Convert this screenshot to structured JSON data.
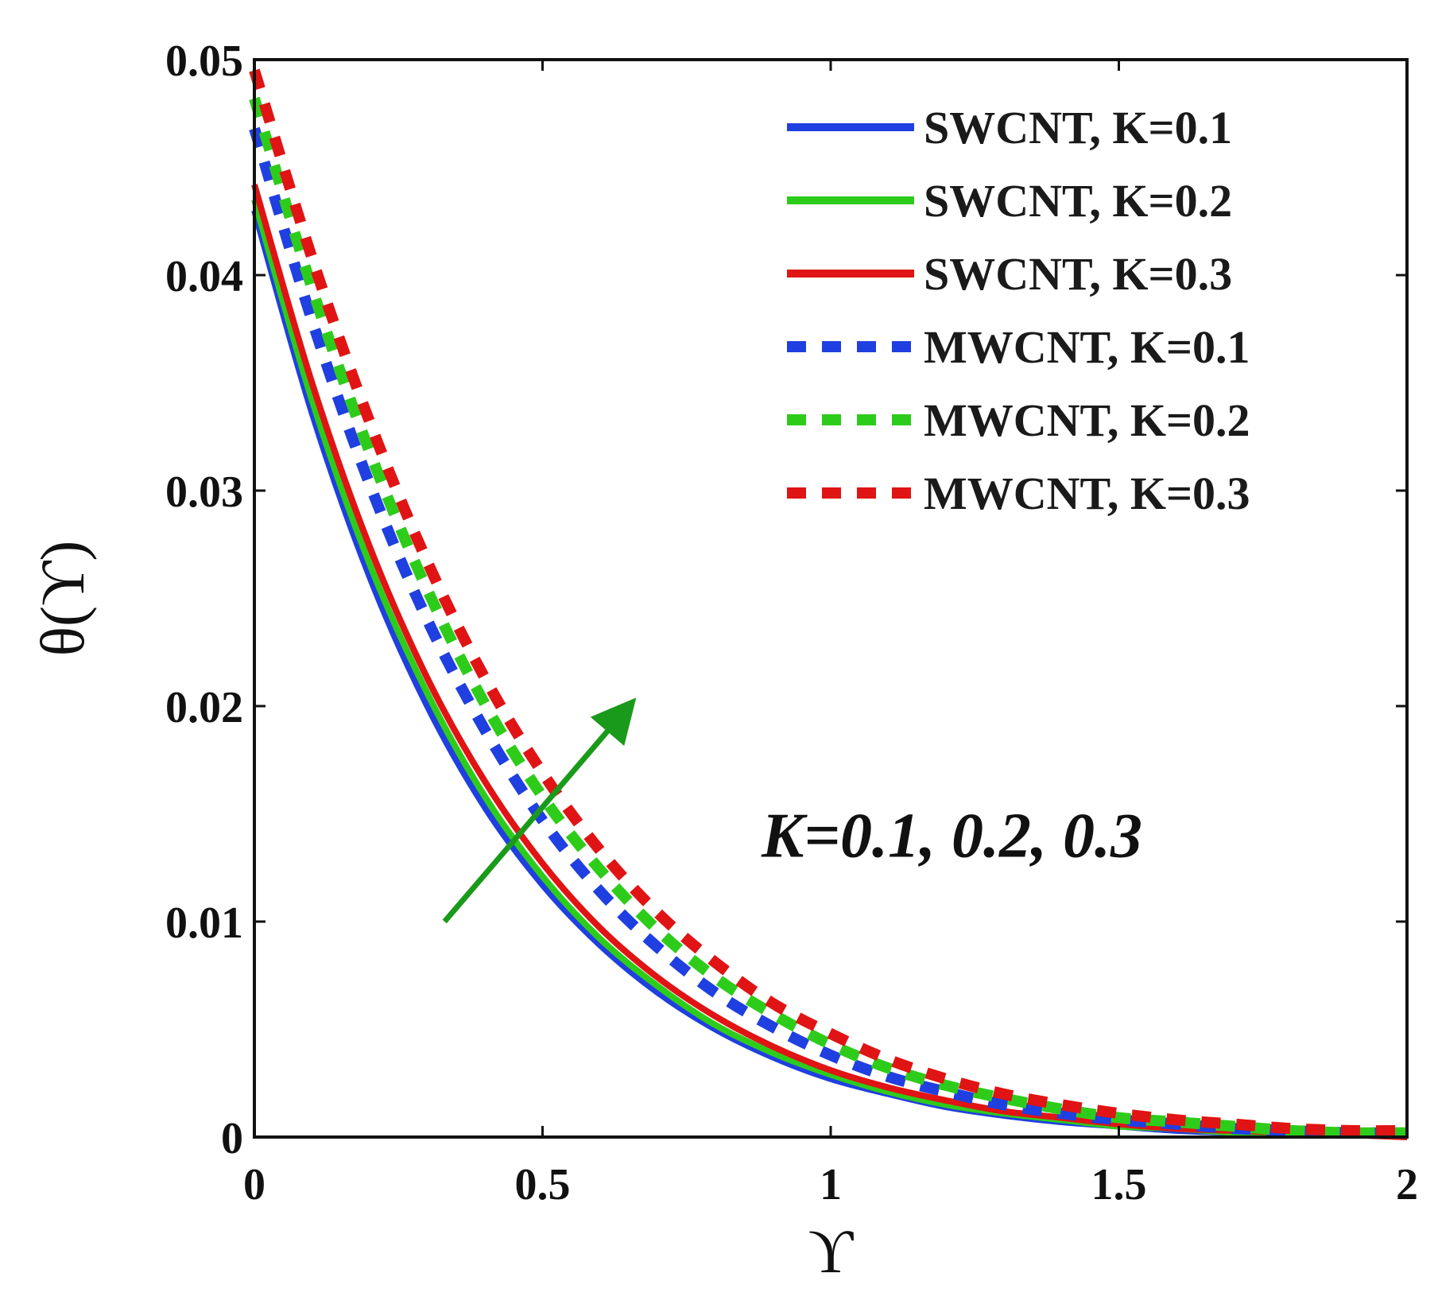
{
  "chart_data": {
    "type": "line",
    "title": "",
    "xlabel": "ϒ",
    "ylabel": "θ(ϒ)",
    "xlim": [
      0,
      2
    ],
    "ylim": [
      0,
      0.05
    ],
    "xticks": [
      "0",
      "0.5",
      "1",
      "1.5",
      "2"
    ],
    "yticks": [
      "0",
      "0.01",
      "0.02",
      "0.03",
      "0.04",
      "0.05"
    ],
    "grid": false,
    "legend_position": "top-right",
    "x": [
      0,
      0.1,
      0.2,
      0.3,
      0.4,
      0.5,
      0.6,
      0.7,
      0.8,
      0.9,
      1.0,
      1.1,
      1.2,
      1.3,
      1.4,
      1.5,
      1.6,
      1.7,
      1.8,
      1.9,
      2.0
    ],
    "series": [
      {
        "name": "SWCNT, K=0.1",
        "color": "#1f3fe0",
        "style": "solid",
        "values": [
          0.043,
          0.0336,
          0.026,
          0.02,
          0.0153,
          0.0117,
          0.0089,
          0.0067,
          0.005,
          0.0037,
          0.0027,
          0.002,
          0.0014,
          0.001,
          0.0007,
          0.0005,
          0.0003,
          0.0002,
          0.0001,
          0.0001,
          0.0
        ]
      },
      {
        "name": "SWCNT, K=0.2",
        "color": "#2ecc1a",
        "style": "solid",
        "values": [
          0.0435,
          0.0342,
          0.0266,
          0.0206,
          0.0158,
          0.0121,
          0.0092,
          0.007,
          0.0052,
          0.0039,
          0.0029,
          0.0021,
          0.0015,
          0.0011,
          0.0008,
          0.0005,
          0.0004,
          0.0002,
          0.0001,
          0.0001,
          0.0
        ]
      },
      {
        "name": "SWCNT, K=0.3",
        "color": "#e01414",
        "style": "solid",
        "values": [
          0.0442,
          0.035,
          0.0274,
          0.0213,
          0.0165,
          0.0127,
          0.0097,
          0.0074,
          0.0056,
          0.0042,
          0.0031,
          0.0023,
          0.0017,
          0.0012,
          0.0009,
          0.0006,
          0.0004,
          0.0003,
          0.0002,
          0.0001,
          0.0
        ]
      },
      {
        "name": "MWCNT, K=0.1",
        "color": "#1f3fe0",
        "style": "dashed",
        "values": [
          0.0468,
          0.0379,
          0.0303,
          0.024,
          0.0189,
          0.0147,
          0.0114,
          0.0088,
          0.0067,
          0.0051,
          0.0038,
          0.0028,
          0.0021,
          0.0015,
          0.0011,
          0.0008,
          0.0006,
          0.0004,
          0.0003,
          0.0002,
          0.0002
        ]
      },
      {
        "name": "MWCNT, K=0.2",
        "color": "#2ecc1a",
        "style": "dashed",
        "values": [
          0.0482,
          0.0394,
          0.0318,
          0.0254,
          0.0201,
          0.0158,
          0.0124,
          0.0096,
          0.0074,
          0.0057,
          0.0043,
          0.0032,
          0.0024,
          0.0018,
          0.0013,
          0.0009,
          0.0007,
          0.0005,
          0.0003,
          0.0002,
          0.0002
        ]
      },
      {
        "name": "MWCNT, K=0.3",
        "color": "#e01414",
        "style": "dashed",
        "values": [
          0.0495,
          0.0408,
          0.0332,
          0.0267,
          0.0213,
          0.0169,
          0.0133,
          0.0104,
          0.0081,
          0.0062,
          0.0048,
          0.0036,
          0.0027,
          0.002,
          0.0015,
          0.0011,
          0.0008,
          0.0006,
          0.0004,
          0.0003,
          0.0003
        ]
      }
    ],
    "annotations": [
      {
        "text": "K=0.1, 0.2, 0.3",
        "arrow_color": "#1a9a1a",
        "arrow_from": [
          0.33,
          0.01
        ],
        "arrow_to": [
          0.65,
          0.02
        ],
        "text_anchor": [
          0.88,
          0.013
        ]
      }
    ]
  }
}
